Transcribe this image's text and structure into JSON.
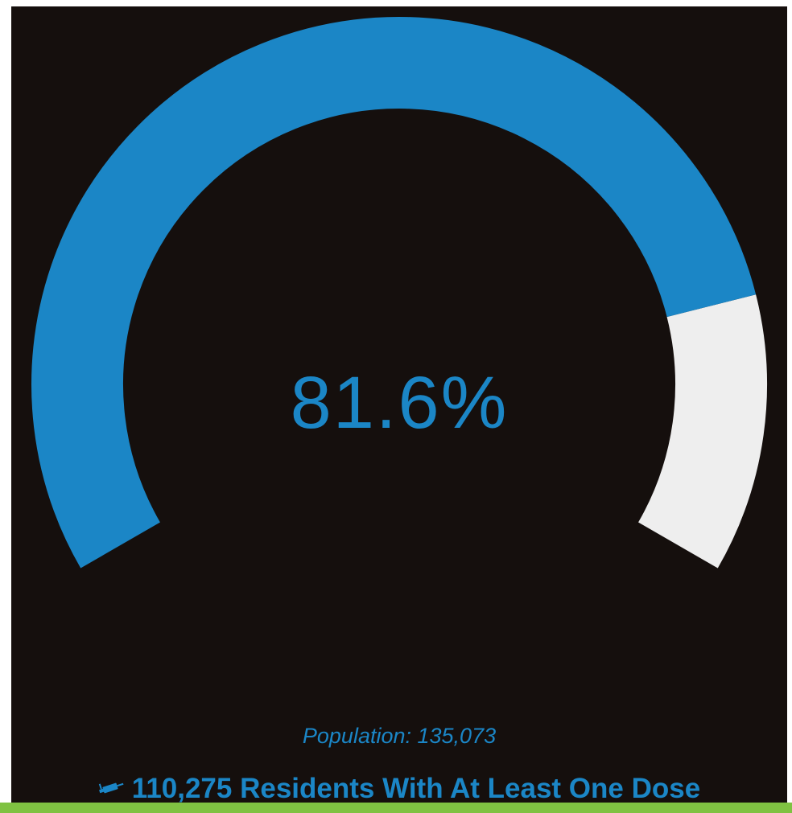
{
  "chart_data": {
    "type": "gauge",
    "value_percent": 81.6,
    "value_label": "81.6%",
    "min": 0,
    "max": 100,
    "fill_color": "#1b86c6",
    "track_color": "#eeeeee"
  },
  "footer": {
    "population_text": "Population: 135,073",
    "headline_text": "110,275 Residents With At Least One Dose",
    "headline_icon": "syringe-icon"
  },
  "colors": {
    "background": "#150f0d",
    "accent": "#1b86c6",
    "strip": "#7fc242"
  }
}
